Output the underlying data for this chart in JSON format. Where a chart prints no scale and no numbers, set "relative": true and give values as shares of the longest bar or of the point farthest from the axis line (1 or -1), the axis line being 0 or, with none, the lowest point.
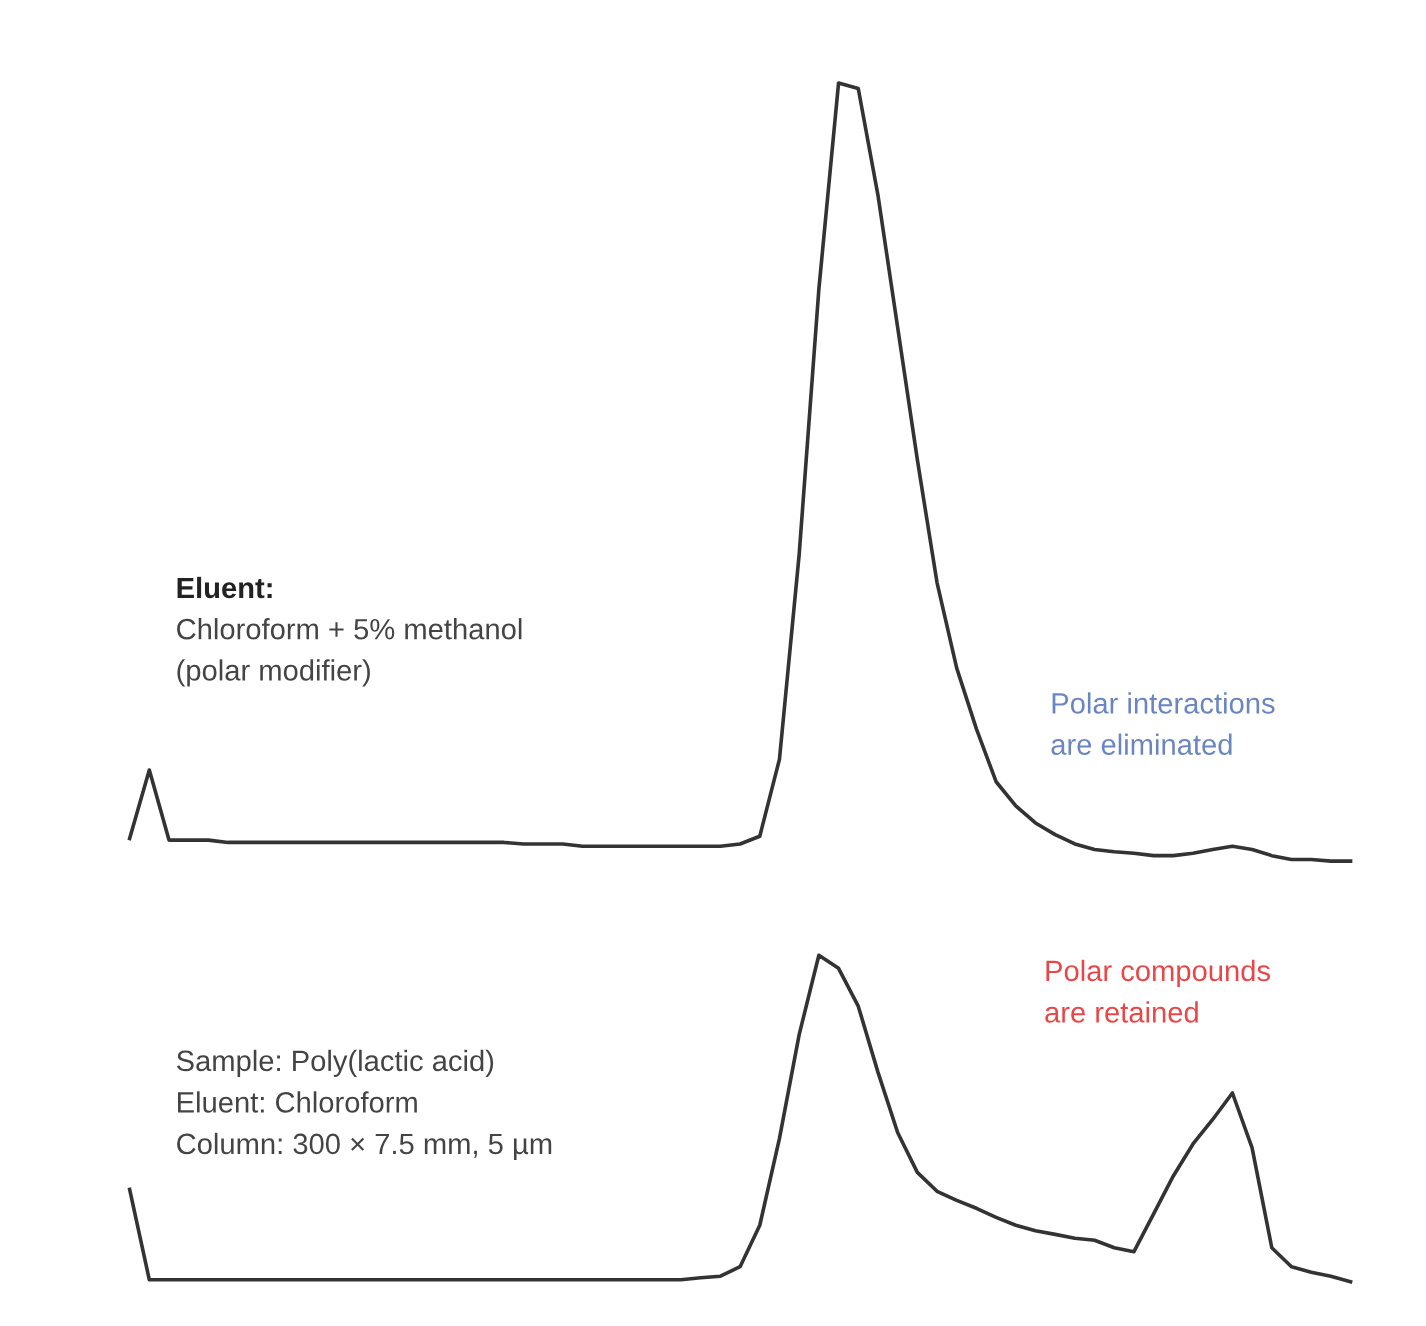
{
  "chart_data": [
    {
      "type": "line",
      "relative": true,
      "categories": [
        null,
        null,
        null,
        null,
        null,
        null,
        null,
        null,
        null,
        null,
        null,
        null,
        null,
        null,
        null,
        null,
        null,
        null,
        null,
        null,
        null,
        null,
        null,
        null,
        null,
        null,
        null,
        null,
        null,
        null,
        null,
        null,
        null,
        null,
        null,
        null,
        null,
        null,
        null,
        null,
        null,
        null,
        null,
        null,
        null,
        null,
        null,
        null,
        null,
        null,
        null,
        null,
        null,
        null,
        null,
        null,
        null,
        null,
        null,
        null,
        null,
        null,
        null
      ],
      "series": [
        {
          "color": "#333333",
          "values": [
            0.029,
            0.117,
            0.027,
            0.027,
            0.027,
            0.024,
            0.024,
            0.024,
            0.024,
            0.024,
            0.024,
            0.024,
            0.024,
            0.024,
            0.024,
            0.024,
            0.024,
            0.024,
            0.024,
            0.024,
            0.022,
            0.022,
            0.022,
            0.019,
            0.019,
            0.019,
            0.019,
            0.019,
            0.019,
            0.019,
            0.019,
            0.022,
            0.032,
            0.131,
            0.394,
            0.735,
            1,
            0.993,
            0.856,
            0.686,
            0.516,
            0.358,
            0.248,
            0.17,
            0.102,
            0.071,
            0.049,
            0.034,
            0.022,
            0.015,
            0.012,
            0.01,
            0.007,
            0.007,
            0.01,
            0.015,
            0.019,
            0.015,
            0.007,
            0.002,
            0.002,
            0,
            0
          ]
        }
      ],
      "annotations": [
        "Eluent:",
        "Chloroform + 5% methanol",
        "(polar modifier)",
        "Polar interactions",
        "are eliminated"
      ]
    },
    {
      "type": "line",
      "relative": true,
      "categories": [
        null,
        null,
        null,
        null,
        null,
        null,
        null,
        null,
        null,
        null,
        null,
        null,
        null,
        null,
        null,
        null,
        null,
        null,
        null,
        null,
        null,
        null,
        null,
        null,
        null,
        null,
        null,
        null,
        null,
        null,
        null,
        null,
        null,
        null,
        null,
        null,
        null,
        null,
        null,
        null,
        null,
        null,
        null,
        null,
        null,
        null,
        null,
        null,
        null,
        null,
        null,
        null,
        null,
        null,
        null,
        null,
        null,
        null,
        null,
        null,
        null,
        null,
        null
      ],
      "series": [
        {
          "color": "#333333",
          "values": [
            0.283,
            0.006,
            0.006,
            0.006,
            0.006,
            0.006,
            0.006,
            0.006,
            0.006,
            0.006,
            0.006,
            0.006,
            0.006,
            0.006,
            0.006,
            0.006,
            0.006,
            0.006,
            0.006,
            0.006,
            0.006,
            0.006,
            0.006,
            0.006,
            0.006,
            0.006,
            0.006,
            0.006,
            0.006,
            0.012,
            0.017,
            0.046,
            0.173,
            0.439,
            0.757,
            1,
            0.96,
            0.844,
            0.642,
            0.457,
            0.335,
            0.277,
            0.249,
            0.225,
            0.197,
            0.173,
            0.156,
            0.145,
            0.133,
            0.127,
            0.104,
            0.092,
            0.208,
            0.324,
            0.422,
            0.497,
            0.578,
            0.41,
            0.104,
            0.046,
            0.029,
            0.017,
            0
          ]
        }
      ],
      "annotations": [
        "Sample: Poly(lactic acid)",
        "Eluent: Chloroform",
        "Column: 300 × 7.5 mm, 5 µm",
        "Polar compounds",
        "are retained"
      ]
    }
  ]
}
